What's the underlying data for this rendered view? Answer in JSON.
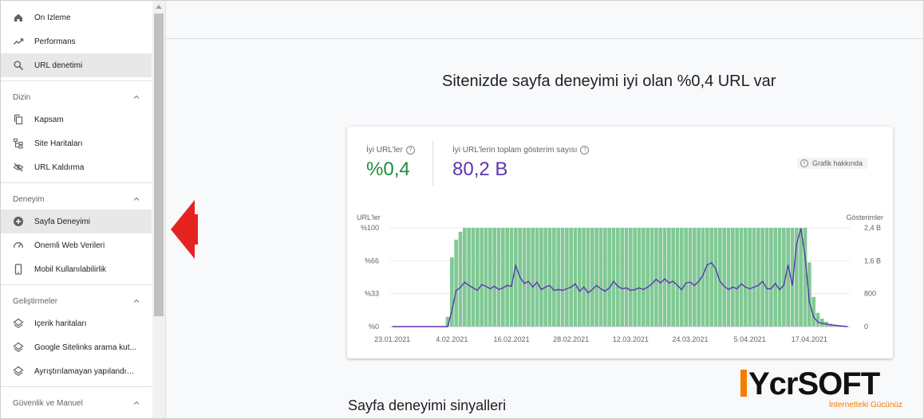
{
  "sidebar": {
    "items_top": [
      {
        "label": "Ön İzleme",
        "icon": "home-icon"
      },
      {
        "label": "Performans",
        "icon": "trending-up-icon"
      },
      {
        "label": "URL denetimi",
        "icon": "search-icon"
      }
    ],
    "sections": [
      {
        "title": "Dizin",
        "items": [
          {
            "label": "Kapsam",
            "icon": "copy-icon"
          },
          {
            "label": "Site Haritaları",
            "icon": "sitemap-icon"
          },
          {
            "label": "URL Kaldırma",
            "icon": "eye-off-icon"
          }
        ]
      },
      {
        "title": "Deneyim",
        "items": [
          {
            "label": "Sayfa Deneyimi",
            "icon": "add-circle-icon"
          },
          {
            "label": "Önemli Web Verileri",
            "icon": "speed-icon"
          },
          {
            "label": "Mobil Kullanılabilirlik",
            "icon": "phone-icon"
          }
        ]
      },
      {
        "title": "Geliştirmeler",
        "items": [
          {
            "label": "İçerik haritaları",
            "icon": "layers-icon"
          },
          {
            "label": "Google Sitelinks arama kut...",
            "icon": "layers-icon"
          },
          {
            "label": "Ayrıştırılamayan yapılandırı...",
            "icon": "layers-icon"
          }
        ]
      },
      {
        "title": "Güvenlik ve Manuel",
        "items": []
      }
    ]
  },
  "main": {
    "headline": "Sitenizde sayfa deneyimi iyi olan %0,4 URL var",
    "metric_good": {
      "label": "İyi URL'ler",
      "value": "%0,4",
      "color": "#1e8e3e"
    },
    "metric_impr": {
      "label": "İyi URL'lerin toplam gösterim sayısı",
      "value": "80,2 B",
      "color": "#5e35b1"
    },
    "about_chart": "Grafik hakkında",
    "section_title": "Sayfa deneyimi sinyalleri"
  },
  "logo": {
    "text": "YcrSOFT",
    "tagline": "İnternetteki Gücünüz"
  },
  "chart_data": {
    "type": "bar",
    "left_axis_title": "URL'ler",
    "right_axis_title": "Gösterimler",
    "left_ticks": [
      "%100",
      "%66",
      "%33",
      "%0"
    ],
    "right_ticks": [
      "2,4 B",
      "1,6 B",
      "800",
      "0"
    ],
    "x_ticks": [
      "23.01.2021",
      "4.02.2021",
      "16.02.2021",
      "28.02.2021",
      "12.03.2021",
      "24.03.2021",
      "5.04.2021",
      "17.04.2021"
    ],
    "ylim_left": [
      0,
      100
    ],
    "ylim_right": [
      0,
      2400
    ],
    "bar_color": "#81c995",
    "line_color": "#5e35b1",
    "bars_percent": [
      0,
      0,
      0,
      0,
      0,
      0,
      0,
      0,
      0,
      0,
      0,
      0,
      0,
      10,
      70,
      88,
      96,
      100,
      100,
      100,
      100,
      100,
      100,
      100,
      100,
      100,
      100,
      100,
      100,
      100,
      100,
      100,
      100,
      100,
      100,
      100,
      100,
      100,
      100,
      100,
      100,
      100,
      100,
      100,
      100,
      100,
      100,
      100,
      100,
      100,
      100,
      100,
      100,
      100,
      100,
      100,
      100,
      100,
      100,
      100,
      100,
      100,
      100,
      100,
      100,
      100,
      100,
      100,
      100,
      100,
      100,
      100,
      100,
      100,
      100,
      100,
      100,
      100,
      100,
      100,
      100,
      100,
      100,
      100,
      100,
      100,
      100,
      100,
      100,
      100,
      100,
      100,
      100,
      100,
      100,
      100,
      100,
      100,
      65,
      30,
      14,
      8,
      5,
      3,
      2,
      1,
      1,
      0
    ],
    "line_values": [
      0,
      0,
      0,
      0,
      0,
      0,
      0,
      0,
      0,
      0,
      0,
      0,
      0,
      0,
      380,
      880,
      950,
      1080,
      1000,
      940,
      880,
      1020,
      980,
      920,
      980,
      900,
      940,
      1000,
      980,
      1480,
      1200,
      1050,
      1100,
      960,
      1080,
      900,
      960,
      1000,
      880,
      900,
      880,
      920,
      960,
      1040,
      860,
      960,
      820,
      900,
      1000,
      920,
      860,
      940,
      1100,
      980,
      920,
      940,
      880,
      900,
      940,
      900,
      960,
      1040,
      1150,
      1060,
      1160,
      1060,
      1100,
      1000,
      900,
      1060,
      1080,
      1000,
      1100,
      1250,
      1500,
      1550,
      1400,
      1100,
      980,
      900,
      960,
      920,
      1040,
      960,
      920,
      960,
      1000,
      1100,
      920,
      920,
      1050,
      900,
      1000,
      1500,
      1000,
      2000,
      2380,
      1700,
      600,
      230,
      110,
      80,
      60,
      40,
      30,
      20,
      10,
      0
    ]
  }
}
